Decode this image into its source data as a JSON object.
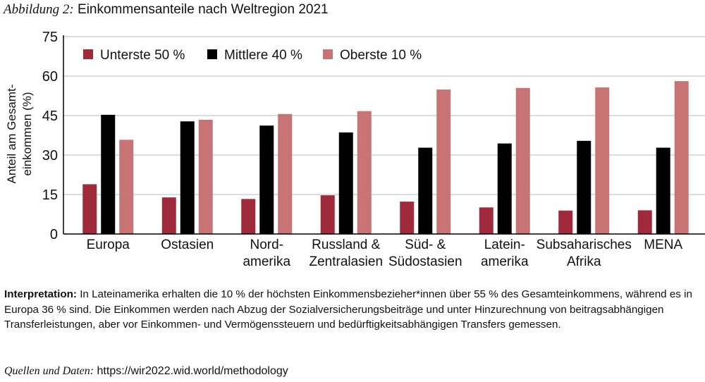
{
  "figure": {
    "label": "Abbildung 2:",
    "title": "Einkommensanteile nach Weltregion 2021"
  },
  "chart_data": {
    "type": "bar",
    "title": "Einkommensanteile nach Weltregion 2021",
    "ylabel": [
      "Anteil am Gesamt-",
      "einkommen (%)"
    ],
    "xlabel": "",
    "ylim": [
      0,
      75
    ],
    "yticks": [
      0,
      15,
      30,
      45,
      60,
      75
    ],
    "grid": true,
    "legend_position": "top-left",
    "categories": [
      [
        "Europa"
      ],
      [
        "Ostasien"
      ],
      [
        "Nord-",
        "amerika"
      ],
      [
        "Russland &",
        "Zentralasien"
      ],
      [
        "Süd- &",
        "Südostasien"
      ],
      [
        "Latein-",
        "amerika"
      ],
      [
        "Subsaharisches",
        "Afrika"
      ],
      [
        "MENA"
      ]
    ],
    "series": [
      {
        "name": "Unterste 50 %",
        "color": "#9e2a3b",
        "values": [
          18.9,
          13.9,
          13.3,
          14.7,
          12.3,
          10.1,
          8.9,
          9.0
        ]
      },
      {
        "name": "Mittlere 40 %",
        "color": "#000000",
        "values": [
          45.3,
          42.8,
          41.2,
          38.6,
          32.8,
          34.4,
          35.4,
          32.8
        ]
      },
      {
        "name": "Oberste 10 %",
        "color": "#c87474",
        "values": [
          35.8,
          43.4,
          45.6,
          46.7,
          54.9,
          55.5,
          55.7,
          58.1
        ]
      }
    ]
  },
  "interpretation": {
    "label": "Interpretation:",
    "text": "In Lateinamerika erhalten die 10 % der höchsten Einkommensbezieher*innen über 55 % des Gesamteinkommens, während es in Europa 36 % sind. Die Einkommen werden nach Abzug der Sozialversicherungsbeiträge und unter Hinzurechnung von beitragsabhängigen Transferleistungen, aber vor Einkommen- und Vermögenssteuern und bedürftigkeitsabhängigen Transfers gemessen."
  },
  "sources": {
    "label": "Quellen und Daten:",
    "url": "https://wir2022.wid.world/methodology"
  }
}
